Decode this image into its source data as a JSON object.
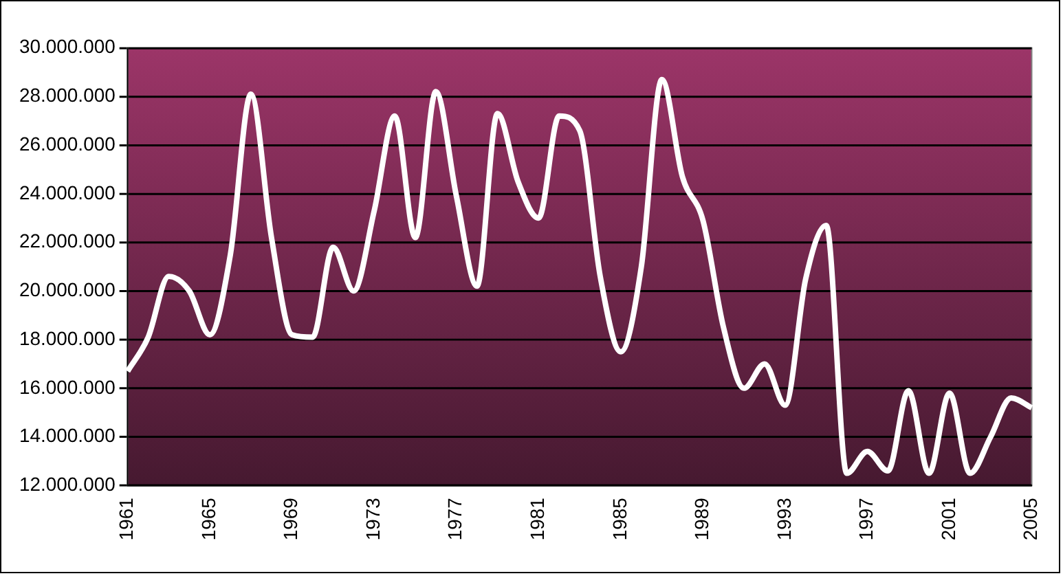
{
  "chart_data": {
    "type": "line",
    "categories": [
      "1961",
      null,
      null,
      null,
      "1965",
      null,
      null,
      null,
      "1969",
      null,
      null,
      null,
      "1973",
      null,
      null,
      null,
      "1977",
      null,
      null,
      null,
      "1981",
      null,
      null,
      null,
      "1985",
      null,
      null,
      null,
      "1989",
      null,
      null,
      null,
      "1993",
      null,
      null,
      null,
      "1997",
      null,
      null,
      null,
      "2001",
      null,
      null,
      null,
      "2005"
    ],
    "series": [
      {
        "color": "#ffffff",
        "values": [
          16700000,
          18100000,
          20600000,
          20000000,
          18200000,
          21500000,
          28100000,
          22200000,
          18200000,
          18100000,
          21800000,
          20000000,
          23300000,
          27200000,
          22200000,
          28200000,
          23900000,
          20200000,
          27300000,
          24500000,
          23000000,
          27200000,
          26600000,
          20600000,
          17500000,
          21000000,
          28700000,
          24700000,
          22900000,
          18500000,
          16000000,
          17000000,
          15300000,
          20500000,
          22700000,
          12500000,
          13400000,
          12600000,
          15900000,
          12500000,
          15800000,
          12500000,
          14000000,
          15600000,
          15200000
        ]
      }
    ],
    "ylim": [
      12000000,
      30000000
    ],
    "yticks": [
      {
        "value": 12000000,
        "label": "12.000.000"
      },
      {
        "value": 14000000,
        "label": "14.000.000"
      },
      {
        "value": 16000000,
        "label": "16.000.000"
      },
      {
        "value": 18000000,
        "label": "18.000.000"
      },
      {
        "value": 20000000,
        "label": "20.000.000"
      },
      {
        "value": 22000000,
        "label": "22.000.000"
      },
      {
        "value": 24000000,
        "label": "24.000.000"
      },
      {
        "value": 26000000,
        "label": "26.000.000"
      },
      {
        "value": 28000000,
        "label": "28.000.000"
      },
      {
        "value": 30000000,
        "label": "30.000.000"
      }
    ],
    "grid": "y",
    "legend": false,
    "marker": "none",
    "line_style": "solid"
  }
}
